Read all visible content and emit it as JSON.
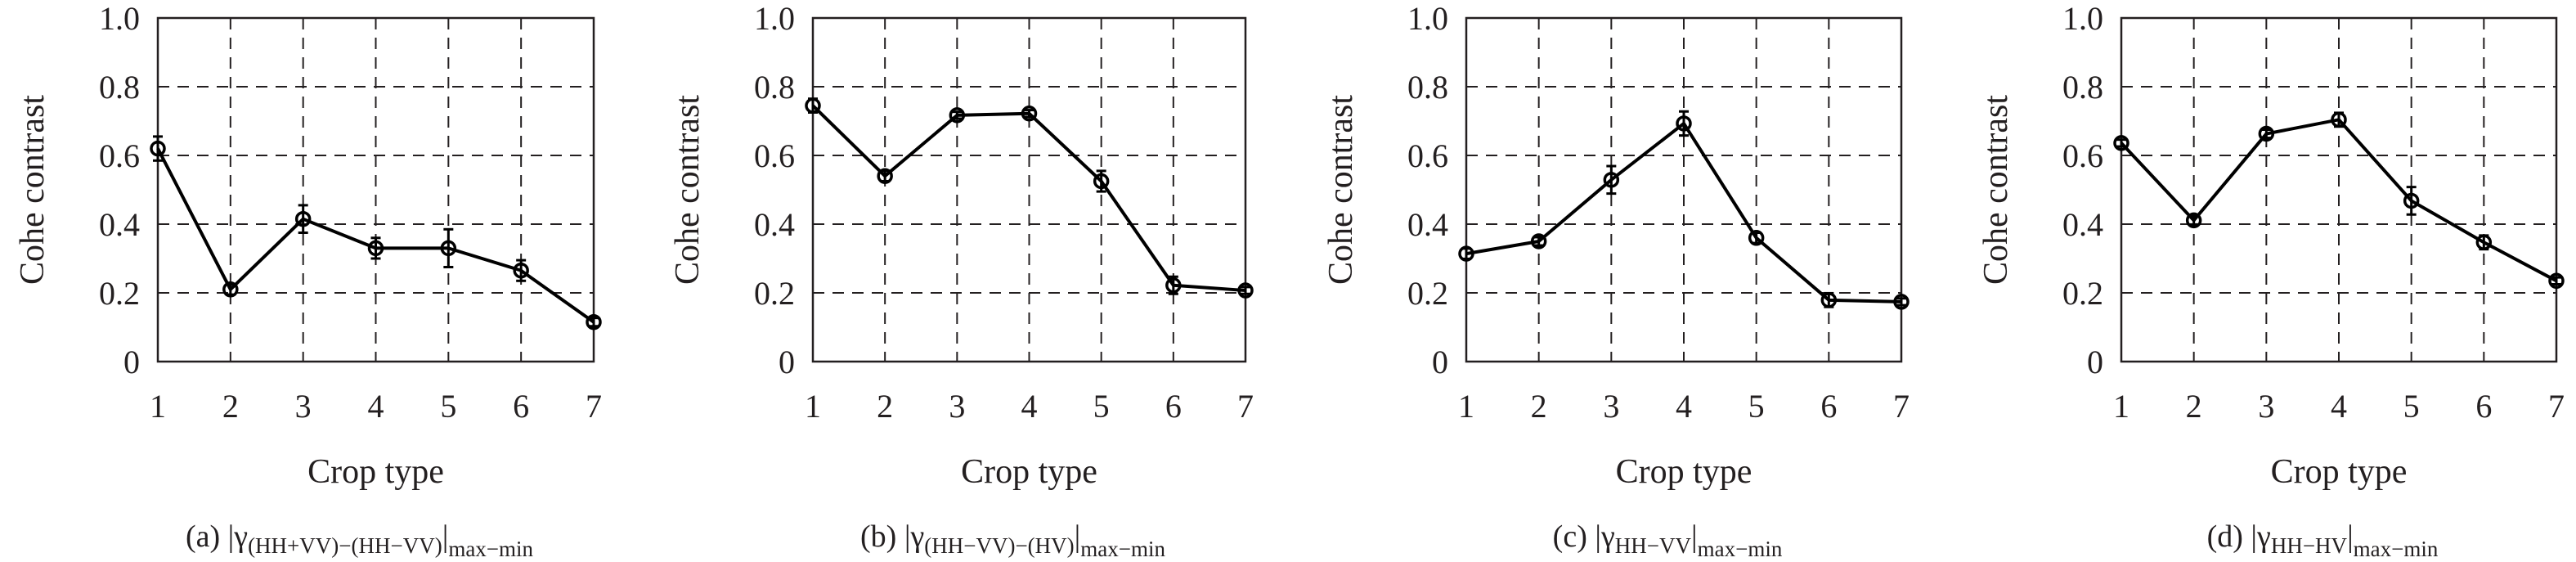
{
  "chart_data": [
    {
      "type": "line",
      "caption": {
        "label": "(a)",
        "symbol": "γ",
        "sub": "(HH+VV)−(HH−VV)",
        "outer_sub": "max−min"
      },
      "xlabel": "Crop type",
      "ylabel": "Cohe contrast",
      "x": [
        1,
        2,
        3,
        4,
        5,
        6,
        7
      ],
      "x_tick_labels": [
        "1",
        "2",
        "3",
        "4",
        "5",
        "6",
        "7"
      ],
      "y_tick_labels": [
        "0",
        "0.2",
        "0.4",
        "0.6",
        "0.8",
        "1.0"
      ],
      "y_ticks": [
        0,
        0.2,
        0.4,
        0.6,
        0.8,
        1.0
      ],
      "xlim": [
        1,
        7
      ],
      "ylim": [
        0,
        1
      ],
      "grid": true,
      "values": [
        0.62,
        0.21,
        0.415,
        0.33,
        0.33,
        0.265,
        0.115
      ],
      "errors": [
        0.035,
        0.015,
        0.04,
        0.03,
        0.055,
        0.03,
        0.012
      ]
    },
    {
      "type": "line",
      "caption": {
        "label": "(b)",
        "symbol": "γ",
        "sub": "(HH−VV)−(HV)",
        "outer_sub": "max−min"
      },
      "xlabel": "Crop type",
      "ylabel": "Cohe contrast",
      "x": [
        1,
        2,
        3,
        4,
        5,
        6,
        7
      ],
      "x_tick_labels": [
        "1",
        "2",
        "3",
        "4",
        "5",
        "6",
        "7"
      ],
      "y_tick_labels": [
        "0",
        "0.2",
        "0.4",
        "0.6",
        "0.8",
        "1.0"
      ],
      "y_ticks": [
        0,
        0.2,
        0.4,
        0.6,
        0.8,
        1.0
      ],
      "xlim": [
        1,
        7
      ],
      "ylim": [
        0,
        1
      ],
      "grid": true,
      "values": [
        0.745,
        0.54,
        0.717,
        0.722,
        0.525,
        0.222,
        0.207
      ],
      "errors": [
        0.02,
        0.015,
        0.01,
        0.01,
        0.03,
        0.025,
        0.01
      ]
    },
    {
      "type": "line",
      "caption": {
        "label": "(c)",
        "symbol": "γ",
        "sub": "HH−VV",
        "outer_sub": "max−min"
      },
      "xlabel": "Crop type",
      "ylabel": "Cohe contrast",
      "x": [
        1,
        2,
        3,
        4,
        5,
        6,
        7
      ],
      "x_tick_labels": [
        "1",
        "2",
        "3",
        "4",
        "5",
        "6",
        "7"
      ],
      "y_tick_labels": [
        "0",
        "0.2",
        "0.4",
        "0.6",
        "0.8",
        "1.0"
      ],
      "y_ticks": [
        0,
        0.2,
        0.4,
        0.6,
        0.8,
        1.0
      ],
      "xlim": [
        1,
        7
      ],
      "ylim": [
        0,
        1
      ],
      "grid": true,
      "values": [
        0.314,
        0.35,
        0.529,
        0.693,
        0.36,
        0.179,
        0.174
      ],
      "errors": [
        0.015,
        0.012,
        0.04,
        0.035,
        0.015,
        0.02,
        0.01
      ]
    },
    {
      "type": "line",
      "caption": {
        "label": "(d)",
        "symbol": "γ",
        "sub": "HH−HV",
        "outer_sub": "max−min"
      },
      "xlabel": "Crop type",
      "ylabel": "Cohe contrast",
      "x": [
        1,
        2,
        3,
        4,
        5,
        6,
        7
      ],
      "x_tick_labels": [
        "1",
        "2",
        "3",
        "4",
        "5",
        "6",
        "7"
      ],
      "y_tick_labels": [
        "0",
        "0.2",
        "0.4",
        "0.6",
        "0.8",
        "1.0"
      ],
      "y_ticks": [
        0,
        0.2,
        0.4,
        0.6,
        0.8,
        1.0
      ],
      "xlim": [
        1,
        7
      ],
      "ylim": [
        0,
        1
      ],
      "grid": true,
      "values": [
        0.636,
        0.411,
        0.663,
        0.704,
        0.468,
        0.347,
        0.235
      ],
      "errors": [
        0.01,
        0.012,
        0.012,
        0.02,
        0.04,
        0.02,
        0.01
      ]
    }
  ]
}
